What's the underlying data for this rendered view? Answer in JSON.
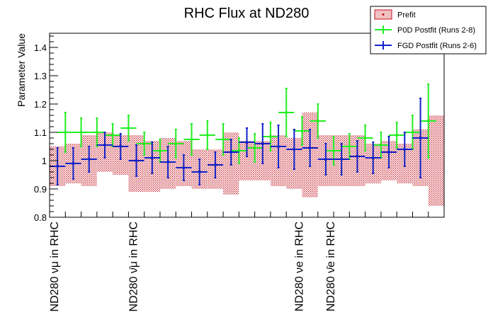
{
  "chart_data": {
    "type": "scatter",
    "title": "RHC Flux at ND280",
    "xlabel": "",
    "ylabel": "Parameter Value",
    "ylim": [
      0.8,
      1.45
    ],
    "yticks": [
      "0.8",
      "0.9",
      "1",
      "1.1",
      "1.2",
      "1.3",
      "1.4"
    ],
    "xlim": [
      0,
      25
    ],
    "grid": false,
    "legend_position": "top-right",
    "xtick_labels": [
      {
        "x": 0,
        "text": "ND280 νμ in RHC"
      },
      {
        "x": 5,
        "text": "ND280 ν̄μ in RHC"
      },
      {
        "x": 15.5,
        "text": "ND280 νe in RHC"
      },
      {
        "x": 17.5,
        "text": "ND280 ν̄e in RHC"
      }
    ],
    "legend": [
      {
        "key": "prefit",
        "label": "Prefit"
      },
      {
        "key": "p0d",
        "label": "P0D Postfit (Runs 2-8)"
      },
      {
        "key": "fgd",
        "label": "FGD Postfit (Runs 2-6)"
      }
    ],
    "colors": {
      "prefit": "#c1121f",
      "p0d": "#22ee22",
      "fgd": "#1020c8"
    },
    "prefit": {
      "name": "Prefit",
      "values": [
        0.98,
        0.99,
        1.0,
        1.03,
        1.02,
        0.99,
        0.98,
        0.99,
        0.99,
        0.97,
        0.97,
        0.99,
        1.0,
        1.0,
        1.0,
        0.99,
        1.02,
        1.0,
        1.0,
        1.0,
        0.99,
        1.0,
        0.99,
        1.01,
        1.0
      ],
      "errors": [
        0.07,
        0.07,
        0.09,
        0.07,
        0.07,
        0.1,
        0.09,
        0.09,
        0.08,
        0.07,
        0.07,
        0.11,
        0.07,
        0.07,
        0.09,
        0.09,
        0.15,
        0.09,
        0.09,
        0.09,
        0.07,
        0.07,
        0.07,
        0.1,
        0.16
      ]
    },
    "p0d": {
      "name": "P0D Postfit (Runs 2-8)",
      "values": [
        1.1,
        1.1,
        1.1,
        1.09,
        1.115,
        1.06,
        1.035,
        1.06,
        1.075,
        1.09,
        1.075,
        1.035,
        1.045,
        1.085,
        1.17,
        1.105,
        1.14,
        1.035,
        1.05,
        1.08,
        1.055,
        1.09,
        1.1,
        1.14
      ],
      "errors": [
        0.07,
        0.05,
        0.05,
        0.04,
        0.045,
        0.04,
        0.04,
        0.05,
        0.055,
        0.05,
        0.055,
        0.045,
        0.05,
        0.05,
        0.085,
        0.05,
        0.06,
        0.05,
        0.045,
        0.045,
        0.045,
        0.045,
        0.06,
        0.13
      ]
    },
    "fgd": {
      "name": "FGD Postfit (Runs 2-6)",
      "values": [
        0.98,
        0.99,
        1.005,
        1.055,
        1.05,
        1.0,
        1.01,
        0.995,
        0.975,
        0.96,
        0.985,
        1.03,
        1.065,
        1.06,
        1.05,
        1.04,
        1.045,
        1.005,
        1.005,
        1.015,
        1.01,
        1.03,
        1.04,
        1.08
      ],
      "errors": [
        0.065,
        0.055,
        0.045,
        0.045,
        0.045,
        0.055,
        0.055,
        0.055,
        0.045,
        0.045,
        0.045,
        0.045,
        0.05,
        0.07,
        0.075,
        0.07,
        0.065,
        0.055,
        0.055,
        0.055,
        0.055,
        0.055,
        0.06,
        0.14
      ]
    }
  }
}
